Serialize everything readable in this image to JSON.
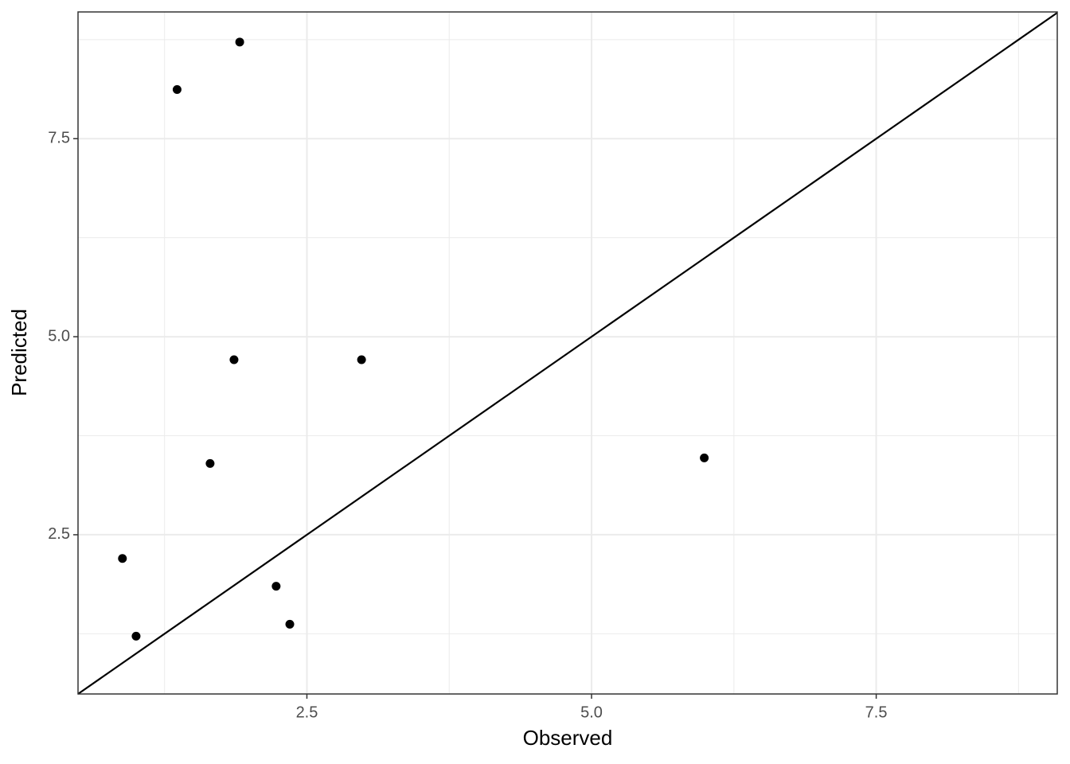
{
  "chart_data": {
    "type": "scatter",
    "x_label": "Observed",
    "y_label": "Predicted",
    "x": [
      0.88,
      1.0,
      1.36,
      1.65,
      1.86,
      1.91,
      2.23,
      2.35,
      2.98,
      5.99
    ],
    "values": [
      2.2,
      1.22,
      8.12,
      3.4,
      4.71,
      8.72,
      1.85,
      1.37,
      4.71,
      3.47
    ],
    "color": "#000000",
    "xlim": [
      0.49,
      9.09
    ],
    "ylim": [
      0.49,
      9.1
    ],
    "xticks": [
      2.5,
      {
        "value": 5.0,
        "label": "5.0"
      },
      7.5
    ],
    "yticks": [
      2.5,
      {
        "value": 5.0,
        "label": "5.0"
      },
      7.5
    ],
    "x_minor_ticks": [
      1.25,
      3.75,
      6.25,
      8.75
    ],
    "y_minor_ticks": [
      1.25,
      3.75,
      6.25,
      8.75
    ],
    "reference_line": {
      "intercept": 0,
      "slope": 1
    },
    "grid": true
  }
}
